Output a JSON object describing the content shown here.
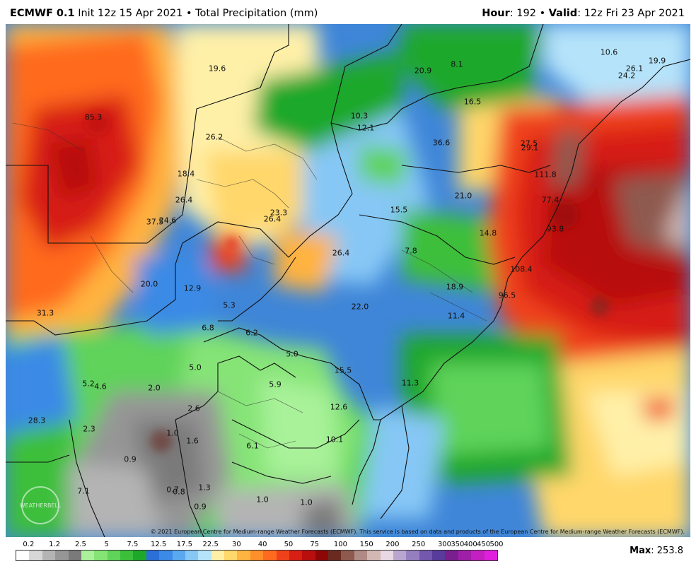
{
  "header": {
    "model": "ECMWF 0.1",
    "init_text": "Init 12z 15 Apr 2021",
    "product": "Total Precipitation (mm)",
    "hour_label": "Hour",
    "hour_value": "192",
    "valid_label": "Valid",
    "valid_value": "12z Fri 23 Apr 2021"
  },
  "map_values": [
    "85.3",
    "19.6",
    "20.9",
    "8.1",
    "10.6",
    "19.9",
    "26.1",
    "24.2",
    "16.5",
    "10.3",
    "12.1",
    "26.2",
    "36.6",
    "27.5",
    "29.1",
    "18.4",
    "111.8",
    "26.4",
    "21.0",
    "15.5",
    "77.4",
    "23.3",
    "26.4",
    "37.5",
    "24.6",
    "14.8",
    "93.8",
    "26.4",
    "7.8",
    "108.4",
    "20.0",
    "12.9",
    "18.9",
    "96.5",
    "31.3",
    "5.3",
    "22.0",
    "11.4",
    "6.8",
    "6.2",
    "5.0",
    "5.0",
    "15.5",
    "5.2",
    "4.6",
    "2.0",
    "5.9",
    "11.3",
    "12.6",
    "2.6",
    "28.3",
    "2.3",
    "1.0",
    "1.6",
    "6.1",
    "10.1",
    "0.9",
    "7.1",
    "0.7",
    "0.8",
    "1.3",
    "0.9",
    "1.0",
    "1.0"
  ],
  "credit": "© 2021 European Centre for Medium-range Weather Forecasts (ECMWF). This service is based on data and products of the European Centre for Medium-range Weather Forecasts (ECMWF).",
  "logo_text": "WEATHERBELL",
  "legend": {
    "ticks": [
      "0.2",
      "1.2",
      "2.5",
      "5",
      "7.5",
      "12.5",
      "17.5",
      "22.5",
      "30",
      "40",
      "50",
      "75",
      "100",
      "150",
      "200",
      "250",
      "300",
      "350",
      "400",
      "450",
      "500"
    ],
    "colors": [
      "#ffffff",
      "#d7d7d7",
      "#b4b4b4",
      "#969696",
      "#7a7a7a",
      "#a9f29a",
      "#86e477",
      "#5fd35a",
      "#3cbf3b",
      "#1ea82a",
      "#2b6fd8",
      "#3b8ae6",
      "#5aa8f0",
      "#86c7f5",
      "#b5e3fa",
      "#fff0a8",
      "#ffd76a",
      "#ffb341",
      "#ff8f2a",
      "#ff6a1f",
      "#f0421a",
      "#d71f14",
      "#b80e0e",
      "#8e0707",
      "#6a2a20",
      "#8e5a50",
      "#b08a84",
      "#d2b7b3",
      "#e8d8e4",
      "#b9a6d0",
      "#967fc0",
      "#7458ad",
      "#583b9a",
      "#7a1f8e",
      "#a01fa8",
      "#c41fc0",
      "#e01fdc"
    ],
    "max_label": "Max",
    "max_value": "253.8"
  }
}
